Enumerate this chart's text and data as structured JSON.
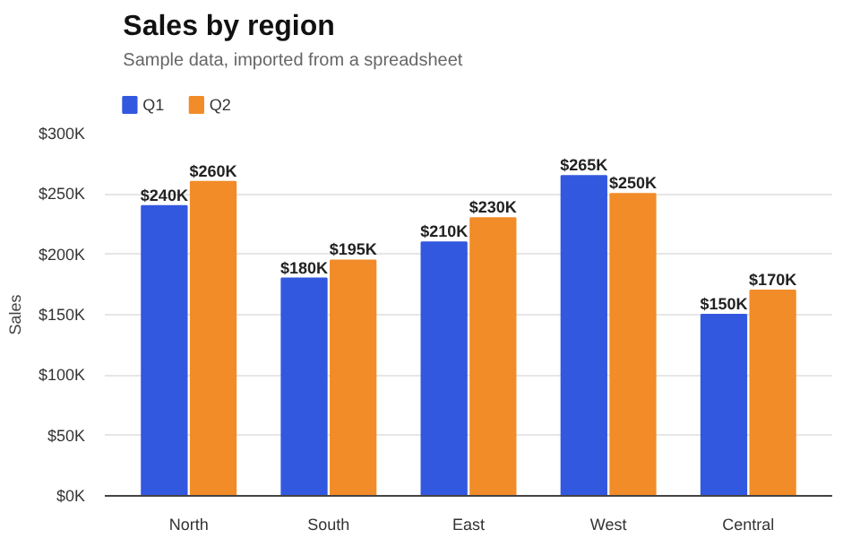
{
  "chart_data": {
    "type": "bar",
    "title": "Sales by region",
    "subtitle": "Sample data, imported from a spreadsheet",
    "ylabel": "Sales",
    "categories": [
      "North",
      "South",
      "East",
      "West",
      "Central"
    ],
    "series": [
      {
        "name": "Q1",
        "color": "#3358e0",
        "values": [
          240000,
          180000,
          210000,
          265000,
          150000
        ],
        "value_labels": [
          "$240K",
          "$180K",
          "$210K",
          "$265K",
          "$150K"
        ]
      },
      {
        "name": "Q2",
        "color": "#f28c28",
        "values": [
          260000,
          195000,
          230000,
          250000,
          170000
        ],
        "value_labels": [
          "$260K",
          "$195K",
          "$230K",
          "$250K",
          "$170K"
        ]
      }
    ],
    "ylim": [
      0,
      300000
    ],
    "yticks": [
      {
        "value": 0,
        "label": "$0K"
      },
      {
        "value": 50000,
        "label": "$50K"
      },
      {
        "value": 100000,
        "label": "$100K"
      },
      {
        "value": 150000,
        "label": "$150K"
      },
      {
        "value": 200000,
        "label": "$200K"
      },
      {
        "value": 250000,
        "label": "$250K"
      },
      {
        "value": 300000,
        "label": "$300K"
      }
    ],
    "grid": "y",
    "legend": "top left"
  }
}
